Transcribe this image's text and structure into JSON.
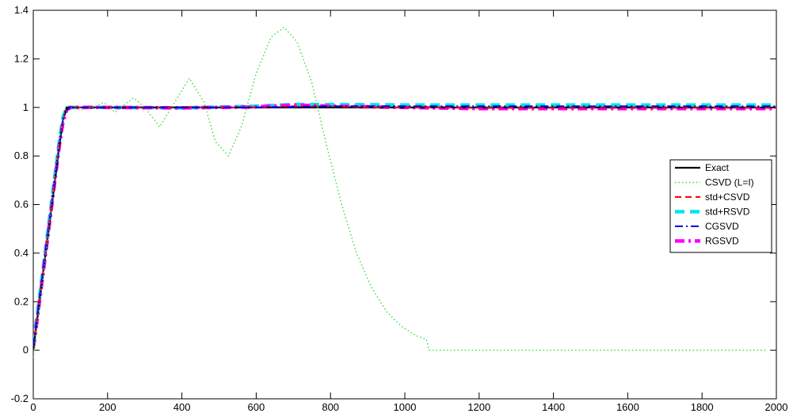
{
  "chart_data": {
    "type": "line",
    "title": "",
    "xlabel": "",
    "ylabel": "",
    "xlim": [
      0,
      2000
    ],
    "ylim": [
      -0.2,
      1.4
    ],
    "grid": false,
    "legend_position": "right",
    "x_ticks": [
      0,
      200,
      400,
      600,
      800,
      1000,
      1200,
      1400,
      1600,
      1800,
      2000
    ],
    "x_tick_labels": [
      "0",
      "200",
      "400",
      "600",
      "800",
      "1000",
      "1200",
      "1400",
      "1600",
      "1800",
      "2000"
    ],
    "y_ticks": [
      -0.2,
      0,
      0.2,
      0.4,
      0.6,
      0.8,
      1,
      1.2,
      1.4
    ],
    "y_tick_labels": [
      "-0.2",
      "0",
      "0.2",
      "0.4",
      "0.6",
      "0.8",
      "1",
      "1.2",
      "1.4"
    ],
    "series": [
      {
        "name": "Exact",
        "color": "#000000",
        "style": "solid",
        "x": [
          0,
          10,
          20,
          30,
          40,
          50,
          60,
          70,
          80,
          90,
          100,
          200,
          400,
          600,
          800,
          1000,
          1200,
          1400,
          1600,
          1800,
          2000
        ],
        "y": [
          0,
          0.12,
          0.24,
          0.36,
          0.48,
          0.6,
          0.72,
          0.84,
          0.95,
          1.0,
          1.0,
          1.0,
          1.0,
          1.0,
          1.0,
          1.0,
          1.0,
          1.0,
          1.0,
          1.0,
          1.0
        ]
      },
      {
        "name": "CSVD (L=I)",
        "color": "#33dd33",
        "style": "dotted",
        "x": [
          0,
          10,
          20,
          30,
          40,
          50,
          60,
          70,
          80,
          90,
          100,
          130,
          160,
          190,
          220,
          245,
          270,
          300,
          340,
          380,
          420,
          460,
          490,
          525,
          560,
          600,
          640,
          675,
          710,
          750,
          790,
          830,
          870,
          910,
          950,
          990,
          1030,
          1058,
          1065,
          1100,
          1200,
          1300,
          1400,
          1500,
          1600,
          1700,
          1800,
          1900,
          1970
        ],
        "y": [
          -0.03,
          0.1,
          0.22,
          0.35,
          0.48,
          0.61,
          0.74,
          0.86,
          0.96,
          1.01,
          1.0,
          0.99,
          1.0,
          1.02,
          0.98,
          1.01,
          1.04,
          1.0,
          0.92,
          1.02,
          1.12,
          1.02,
          0.86,
          0.8,
          0.92,
          1.14,
          1.29,
          1.33,
          1.27,
          1.1,
          0.84,
          0.6,
          0.4,
          0.26,
          0.16,
          0.1,
          0.06,
          0.045,
          0.0,
          0.0,
          0.0,
          0.0,
          0.0,
          0.0,
          0.0,
          0.0,
          0.0,
          0.0,
          0.0
        ]
      },
      {
        "name": "std+CSVD",
        "color": "#ff0000",
        "style": "dashed",
        "x": [
          0,
          10,
          20,
          30,
          40,
          50,
          60,
          70,
          80,
          90,
          100,
          200,
          400,
          600,
          700,
          800,
          900,
          1000,
          1200,
          1400,
          1600,
          1800,
          2000
        ],
        "y": [
          0.02,
          0.13,
          0.25,
          0.37,
          0.49,
          0.61,
          0.73,
          0.85,
          0.95,
          0.99,
          1.0,
          1.0,
          1.0,
          1.0,
          1.005,
          1.005,
          1.0,
          1.0,
          0.998,
          0.998,
          0.998,
          0.998,
          0.998
        ]
      },
      {
        "name": "std+RSVD",
        "color": "#00e5ee",
        "style": "dashed-thick",
        "x": [
          0,
          10,
          20,
          30,
          40,
          50,
          60,
          70,
          80,
          90,
          100,
          200,
          400,
          600,
          700,
          800,
          1000,
          1200,
          1400,
          1600,
          1800,
          2000
        ],
        "y": [
          0.03,
          0.14,
          0.26,
          0.38,
          0.5,
          0.62,
          0.74,
          0.86,
          0.96,
          1.0,
          1.0,
          1.0,
          0.998,
          1.005,
          1.012,
          1.012,
          1.01,
          1.01,
          1.01,
          1.01,
          1.01,
          1.01
        ]
      },
      {
        "name": "CGSVD",
        "color": "#0000ee",
        "style": "dashdot",
        "x": [
          0,
          10,
          20,
          30,
          40,
          50,
          60,
          70,
          80,
          90,
          100,
          200,
          400,
          600,
          800,
          1000,
          1200,
          1400,
          1600,
          1800,
          2000
        ],
        "y": [
          0.02,
          0.13,
          0.25,
          0.37,
          0.49,
          0.61,
          0.73,
          0.85,
          0.95,
          0.99,
          1.0,
          1.0,
          1.0,
          1.0,
          1.005,
          1.005,
          1.005,
          1.005,
          1.005,
          1.005,
          1.005
        ]
      },
      {
        "name": "RGSVD",
        "color": "#ff00ff",
        "style": "dashdot-thick",
        "x": [
          0,
          10,
          20,
          30,
          40,
          50,
          60,
          70,
          80,
          90,
          100,
          200,
          400,
          600,
          700,
          800,
          1000,
          1200,
          1400,
          1600,
          1800,
          2000
        ],
        "y": [
          0.01,
          0.12,
          0.24,
          0.36,
          0.48,
          0.6,
          0.72,
          0.84,
          0.94,
          0.99,
          1.0,
          1.0,
          0.998,
          1.002,
          1.01,
          1.005,
          1.0,
          0.995,
          0.995,
          0.995,
          0.995,
          0.995
        ]
      }
    ]
  }
}
